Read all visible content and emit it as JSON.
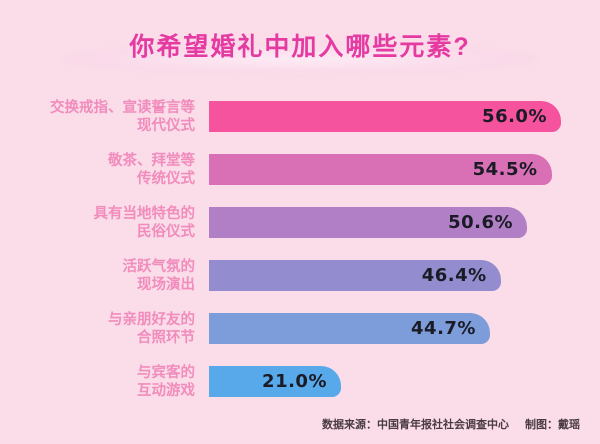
{
  "title": "你希望婚礼中加入哪些元素?",
  "footer": {
    "source": "数据来源：中国青年报社社会调查中心",
    "credit": "制图：戴瑶"
  },
  "colors": {
    "background": "#FADDE9",
    "title_text": "#E53AA2",
    "title_ellipse_inner": "#FDECF5",
    "title_ellipse_outer": "#F6C8DD",
    "label_text": "#F18CBC",
    "value_text": "#1B1B26",
    "footer_text": "#4A3B42"
  },
  "chart_data": {
    "type": "bar",
    "orientation": "horizontal",
    "title": "你希望婚礼中加入哪些元素?",
    "xlabel": "",
    "ylabel": "",
    "unit": "%",
    "xlim": [
      0,
      60
    ],
    "grid": false,
    "legend": false,
    "categories": [
      "交换戒指、宣读誓言等现代仪式",
      "敬茶、拜堂等传统仪式",
      "具有当地特色的民俗仪式",
      "活跃气氛的现场演出",
      "与亲朋好友的合照环节",
      "与宾客的互动游戏"
    ],
    "values": [
      56.0,
      54.5,
      50.6,
      46.4,
      44.7,
      21.0
    ],
    "items": [
      {
        "label_lines": [
          "交换戒指、宣读誓言等",
          "现代仪式"
        ],
        "value": 56.0,
        "display": "56.0%",
        "color": "#F6539F"
      },
      {
        "label_lines": [
          "敬茶、拜堂等",
          "传统仪式"
        ],
        "value": 54.5,
        "display": "54.5%",
        "color": "#D96FB5"
      },
      {
        "label_lines": [
          "具有当地特色的",
          "民俗仪式"
        ],
        "value": 50.6,
        "display": "50.6%",
        "color": "#B07FC5"
      },
      {
        "label_lines": [
          "活跃气氛的",
          "现场演出"
        ],
        "value": 46.4,
        "display": "46.4%",
        "color": "#938CCE"
      },
      {
        "label_lines": [
          "与亲朋好友的",
          "合照环节"
        ],
        "value": 44.7,
        "display": "44.7%",
        "color": "#7D9CDA"
      },
      {
        "label_lines": [
          "与宾客的",
          "互动游戏"
        ],
        "value": 21.0,
        "display": "21.0%",
        "color": "#58A9E9"
      }
    ]
  }
}
